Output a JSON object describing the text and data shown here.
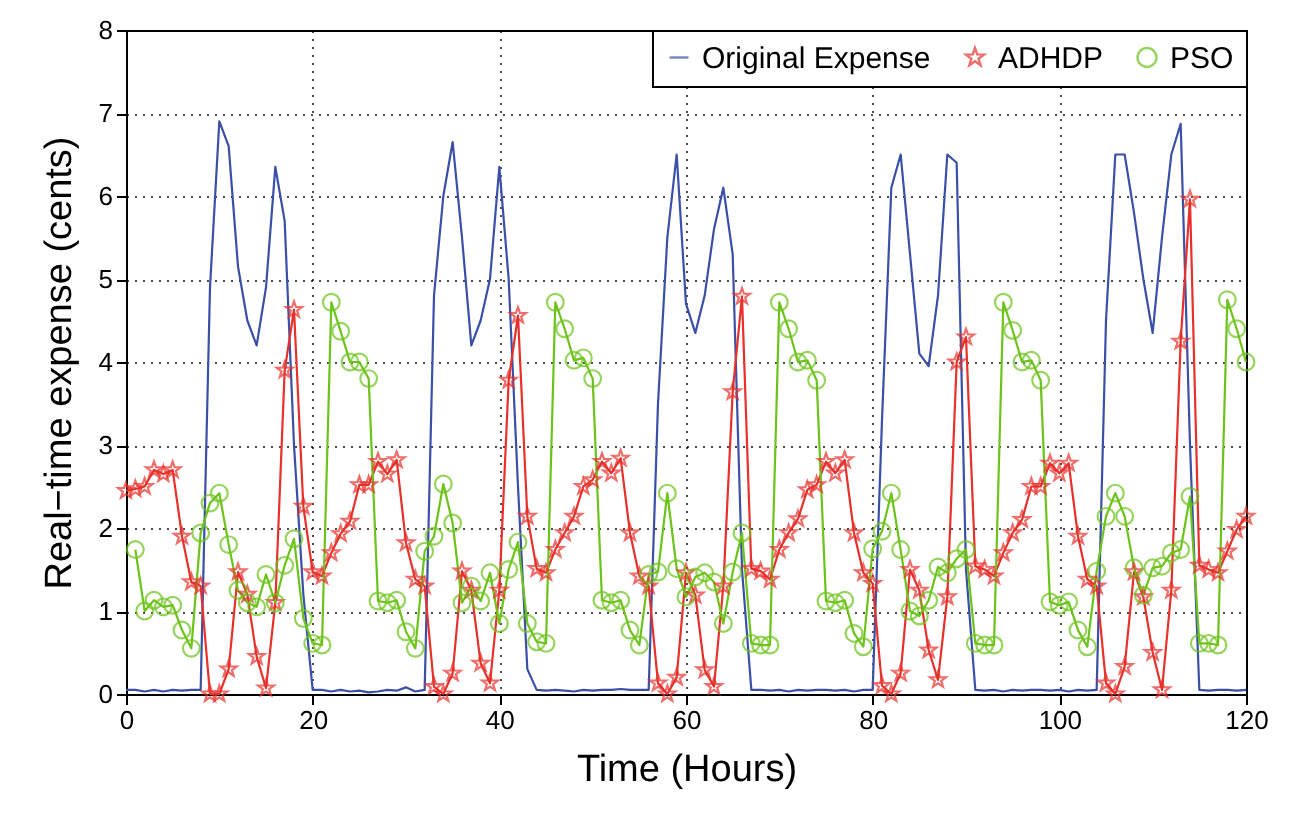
{
  "chart_data": {
    "type": "line",
    "xlabel": "Time (Hours)",
    "ylabel": "Real−time expense (cents)",
    "x": [
      0,
      1,
      2,
      3,
      4,
      5,
      6,
      7,
      8,
      9,
      10,
      11,
      12,
      13,
      14,
      15,
      16,
      17,
      18,
      19,
      20,
      21,
      22,
      23,
      24,
      25,
      26,
      27,
      28,
      29,
      30,
      31,
      32,
      33,
      34,
      35,
      36,
      37,
      38,
      39,
      40,
      41,
      42,
      43,
      44,
      45,
      46,
      47,
      48,
      49,
      50,
      51,
      52,
      53,
      54,
      55,
      56,
      57,
      58,
      59,
      60,
      61,
      62,
      63,
      64,
      65,
      66,
      67,
      68,
      69,
      70,
      71,
      72,
      73,
      74,
      75,
      76,
      77,
      78,
      79,
      80,
      81,
      82,
      83,
      84,
      85,
      86,
      87,
      88,
      89,
      90,
      91,
      92,
      93,
      94,
      95,
      96,
      97,
      98,
      99,
      100,
      101,
      102,
      103,
      104,
      105,
      106,
      107,
      108,
      109,
      110,
      111,
      112,
      113,
      114,
      115,
      116,
      117,
      118,
      119,
      120
    ],
    "series": [
      {
        "name": "Original Expense",
        "color": "#3a4fa8",
        "marker": "none",
        "values": [
          0.05,
          0.05,
          0.03,
          0.05,
          0.03,
          0.05,
          0.04,
          0.05,
          0.05,
          4.9,
          6.9,
          6.6,
          5.15,
          4.5,
          4.2,
          4.9,
          6.35,
          5.7,
          3.0,
          1.2,
          0.05,
          0.05,
          0.03,
          0.05,
          0.03,
          0.04,
          0.02,
          0.03,
          0.05,
          0.04,
          0.08,
          0.03,
          0.05,
          4.8,
          6.0,
          6.65,
          5.5,
          4.2,
          4.5,
          5.0,
          6.35,
          5.0,
          2.5,
          0.3,
          0.05,
          0.04,
          0.05,
          0.04,
          0.03,
          0.05,
          0.04,
          0.05,
          0.05,
          0.06,
          0.05,
          0.05,
          0.05,
          3.5,
          5.5,
          6.5,
          4.7,
          4.35,
          4.8,
          5.6,
          6.1,
          5.3,
          1.5,
          0.05,
          0.05,
          0.04,
          0.05,
          0.03,
          0.05,
          0.04,
          0.05,
          0.05,
          0.04,
          0.05,
          0.03,
          0.05,
          0.05,
          3.3,
          6.1,
          6.5,
          5.3,
          4.1,
          3.95,
          4.8,
          6.5,
          6.4,
          1.5,
          0.05,
          0.04,
          0.05,
          0.03,
          0.05,
          0.04,
          0.05,
          0.05,
          0.04,
          0.05,
          0.03,
          0.05,
          0.04,
          0.05,
          4.5,
          6.5,
          6.5,
          5.8,
          5.0,
          4.35,
          5.5,
          6.5,
          6.87,
          3.0,
          0.05,
          0.04,
          0.05,
          0.05,
          0.04,
          0.05
        ]
      },
      {
        "name": "ADHDP",
        "color": "#e8302a",
        "marker": "star",
        "values": [
          2.45,
          2.47,
          2.5,
          2.7,
          2.65,
          2.7,
          1.9,
          1.35,
          1.3,
          0,
          0,
          0.3,
          1.47,
          1.2,
          0.45,
          0.07,
          1.1,
          3.9,
          4.63,
          2.26,
          1.47,
          1.42,
          1.7,
          1.93,
          2.08,
          2.52,
          2.52,
          2.8,
          2.65,
          2.82,
          1.82,
          1.38,
          1.3,
          0.09,
          0,
          0.25,
          1.48,
          1.25,
          0.37,
          0.13,
          1.25,
          3.78,
          4.56,
          2.14,
          1.51,
          1.46,
          1.74,
          1.94,
          2.14,
          2.5,
          2.58,
          2.8,
          2.66,
          2.84,
          1.94,
          1.42,
          1.3,
          0.13,
          0,
          0.2,
          1.46,
          1.19,
          0.29,
          0.09,
          1.3,
          3.64,
          4.79,
          1.51,
          1.48,
          1.38,
          1.74,
          1.94,
          2.11,
          2.46,
          2.52,
          2.8,
          2.66,
          2.82,
          1.94,
          1.46,
          1.33,
          0.1,
          0,
          0.25,
          1.5,
          1.25,
          0.53,
          0.17,
          1.17,
          4.0,
          4.3,
          1.54,
          1.5,
          1.42,
          1.7,
          1.94,
          2.1,
          2.5,
          2.5,
          2.78,
          2.66,
          2.78,
          1.9,
          1.38,
          1.3,
          0.13,
          0,
          0.33,
          1.47,
          1.17,
          0.5,
          0.05,
          1.25,
          4.25,
          5.96,
          1.55,
          1.5,
          1.46,
          1.72,
          1.98,
          2.14
        ]
      },
      {
        "name": "PSO",
        "color": "#6cc319",
        "marker": "circle",
        "x": [
          1,
          2,
          3,
          4,
          5,
          6,
          7,
          8,
          9,
          10,
          11,
          12,
          13,
          14,
          15,
          16,
          17,
          18,
          19,
          20,
          21,
          22,
          23,
          24,
          25,
          26,
          27,
          28,
          29,
          30,
          31,
          32,
          33,
          34,
          35,
          36,
          37,
          38,
          39,
          40,
          41,
          42,
          43,
          44,
          45,
          46,
          47,
          48,
          49,
          50,
          51,
          52,
          53,
          54,
          55,
          56,
          57,
          58,
          59,
          60,
          61,
          62,
          63,
          64,
          65,
          66,
          67,
          68,
          69,
          70,
          71,
          72,
          73,
          74,
          75,
          76,
          77,
          78,
          79,
          80,
          81,
          82,
          83,
          84,
          85,
          86,
          87,
          88,
          89,
          90,
          91,
          92,
          93,
          94,
          95,
          96,
          97,
          98,
          99,
          100,
          101,
          102,
          103,
          104,
          105,
          106,
          107,
          108,
          109,
          110,
          111,
          112,
          113,
          114,
          115,
          116,
          117,
          118,
          119,
          120
        ],
        "values": [
          1.74,
          1.0,
          1.13,
          1.05,
          1.07,
          0.77,
          0.55,
          1.94,
          2.3,
          2.42,
          1.8,
          1.25,
          1.1,
          1.05,
          1.44,
          1.1,
          1.55,
          1.87,
          0.91,
          0.61,
          0.59,
          4.72,
          4.37,
          4.0,
          4.0,
          3.8,
          1.12,
          1.1,
          1.13,
          0.75,
          0.55,
          1.72,
          1.9,
          2.53,
          2.06,
          1.1,
          1.3,
          1.12,
          1.46,
          0.85,
          1.5,
          1.83,
          0.85,
          0.63,
          0.61,
          4.72,
          4.4,
          4.02,
          4.05,
          3.8,
          1.13,
          1.1,
          1.13,
          0.77,
          0.59,
          1.44,
          1.47,
          2.42,
          1.51,
          1.17,
          1.41,
          1.46,
          1.35,
          0.85,
          1.47,
          1.94,
          0.61,
          0.59,
          0.59,
          4.72,
          4.4,
          4.0,
          4.02,
          3.78,
          1.12,
          1.1,
          1.13,
          0.73,
          0.57,
          1.75,
          1.96,
          2.42,
          1.74,
          1.0,
          0.94,
          1.13,
          1.53,
          1.46,
          1.63,
          1.74,
          0.61,
          0.59,
          0.59,
          4.72,
          4.38,
          4.0,
          4.02,
          3.78,
          1.11,
          1.07,
          1.11,
          0.77,
          0.57,
          1.48,
          2.14,
          2.42,
          2.14,
          1.52,
          1.19,
          1.52,
          1.54,
          1.7,
          1.74,
          2.38,
          0.61,
          0.61,
          0.59,
          4.75,
          4.4,
          4.0
        ]
      }
    ],
    "xlim": [
      0,
      120
    ],
    "xticks": [
      0,
      20,
      40,
      60,
      80,
      100,
      120
    ],
    "ylim": [
      0,
      8
    ],
    "yticks": [
      0,
      1,
      2,
      3,
      4,
      5,
      6,
      7,
      8
    ],
    "grid": true,
    "legend": "top right",
    "line_style": "solid"
  }
}
